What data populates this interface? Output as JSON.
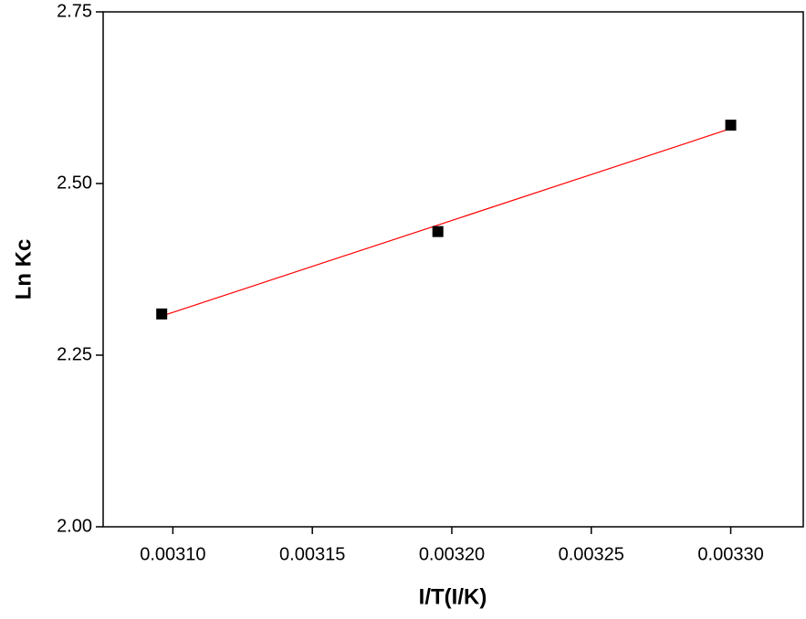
{
  "chart_data": {
    "type": "scatter",
    "x_label": "I/T(I/K)",
    "y_label": "Ln Kc",
    "x": [
      0.003096,
      0.003195,
      0.0033
    ],
    "values": [
      2.31,
      2.43,
      2.585
    ],
    "color": "#000000",
    "fit": {
      "x": [
        0.003096,
        0.0033
      ],
      "values": [
        2.307,
        2.58
      ],
      "color": "#ff0000"
    },
    "xlim": [
      0.003075,
      0.003326
    ],
    "xticks": [
      {
        "value": 0.0031,
        "label": "0.00310"
      },
      {
        "value": 0.00315,
        "label": "0.00315"
      },
      {
        "value": 0.0032,
        "label": "0.00320"
      },
      {
        "value": 0.00325,
        "label": "0.00325"
      },
      {
        "value": 0.0033,
        "label": "0.00330"
      }
    ],
    "ylim": [
      2.0,
      2.75
    ],
    "yticks": [
      {
        "value": 2.0,
        "label": "2.00"
      },
      {
        "value": 2.25,
        "label": "2.25"
      },
      {
        "value": 2.5,
        "label": "2.50"
      },
      {
        "value": 2.75,
        "label": "2.75"
      }
    ],
    "grid": false
  }
}
